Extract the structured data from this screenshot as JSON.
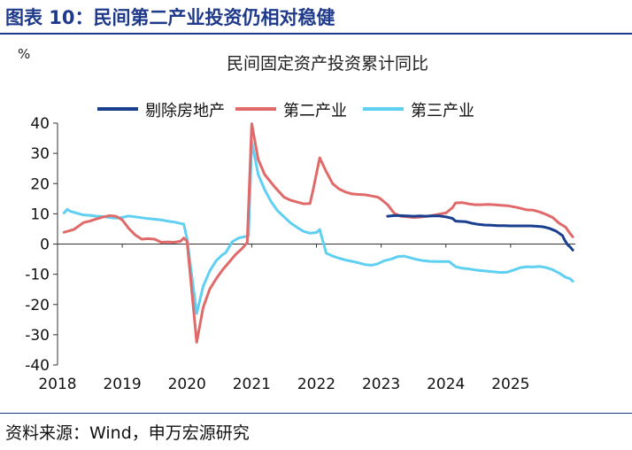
{
  "figure": {
    "title": "图表 10：民间第二产业投资仍相对稳健",
    "source": "资料来源：Wind，申万宏源研究"
  },
  "chart_data": {
    "type": "line",
    "title": "民间固定资产投资累计同比",
    "unit_label": "%",
    "ylim": [
      -40,
      40
    ],
    "y_ticks": [
      -40,
      -30,
      -20,
      -10,
      0,
      10,
      20,
      30,
      40
    ],
    "xlim": [
      2018.0,
      2026.0
    ],
    "x_ticks": [
      2018,
      2019,
      2020,
      2021,
      2022,
      2023,
      2024,
      2025
    ],
    "x_tick_labels": [
      "2018",
      "2019",
      "2020",
      "2021",
      "2022",
      "2023",
      "2024",
      "2025"
    ],
    "grid": false,
    "legend_position": "top",
    "series": [
      {
        "name": "剔除房地产",
        "color": "#1a3f8f",
        "points": [
          [
            2023.1,
            9.2
          ],
          [
            2023.2,
            9.4
          ],
          [
            2023.3,
            9.4
          ],
          [
            2023.4,
            9.3
          ],
          [
            2023.5,
            9.2
          ],
          [
            2023.6,
            9.3
          ],
          [
            2023.7,
            9.2
          ],
          [
            2023.8,
            9.3
          ],
          [
            2023.9,
            9.3
          ],
          [
            2024.0,
            9.0
          ],
          [
            2024.1,
            8.5
          ],
          [
            2024.15,
            7.6
          ],
          [
            2024.3,
            7.4
          ],
          [
            2024.4,
            6.9
          ],
          [
            2024.5,
            6.5
          ],
          [
            2024.6,
            6.3
          ],
          [
            2024.7,
            6.2
          ],
          [
            2024.8,
            6.1
          ],
          [
            2024.9,
            6.1
          ],
          [
            2025.0,
            6.0
          ],
          [
            2025.1,
            6.0
          ],
          [
            2025.2,
            6.0
          ],
          [
            2025.3,
            6.0
          ],
          [
            2025.4,
            5.9
          ],
          [
            2025.5,
            5.7
          ],
          [
            2025.6,
            5.2
          ],
          [
            2025.7,
            4.3
          ],
          [
            2025.8,
            2.8
          ],
          [
            2025.83,
            1.5
          ],
          [
            2025.88,
            -0.2
          ],
          [
            2025.92,
            -1.0
          ],
          [
            2025.96,
            -2.0
          ]
        ]
      },
      {
        "name": "第二产业",
        "color": "#e06a6a",
        "points": [
          [
            2018.1,
            3.9
          ],
          [
            2018.15,
            4.2
          ],
          [
            2018.25,
            4.8
          ],
          [
            2018.4,
            7.1
          ],
          [
            2018.5,
            7.6
          ],
          [
            2018.6,
            8.3
          ],
          [
            2018.7,
            8.9
          ],
          [
            2018.8,
            9.4
          ],
          [
            2018.9,
            9.2
          ],
          [
            2019.0,
            8.0
          ],
          [
            2019.1,
            5.2
          ],
          [
            2019.2,
            3.0
          ],
          [
            2019.3,
            1.6
          ],
          [
            2019.4,
            1.8
          ],
          [
            2019.5,
            1.6
          ],
          [
            2019.6,
            0.6
          ],
          [
            2019.7,
            0.7
          ],
          [
            2019.8,
            0.6
          ],
          [
            2019.9,
            0.9
          ],
          [
            2019.95,
            2.0
          ],
          [
            2020.0,
            1.0
          ],
          [
            2020.15,
            -32.5
          ],
          [
            2020.25,
            -21.0
          ],
          [
            2020.35,
            -15.0
          ],
          [
            2020.45,
            -11.5
          ],
          [
            2020.55,
            -8.5
          ],
          [
            2020.65,
            -6.0
          ],
          [
            2020.75,
            -3.5
          ],
          [
            2020.85,
            -1.5
          ],
          [
            2020.93,
            0.5
          ],
          [
            2021.0,
            39.8
          ],
          [
            2021.1,
            28.0
          ],
          [
            2021.2,
            23.0
          ],
          [
            2021.35,
            19.0
          ],
          [
            2021.5,
            15.5
          ],
          [
            2021.6,
            14.5
          ],
          [
            2021.7,
            13.9
          ],
          [
            2021.8,
            13.3
          ],
          [
            2021.9,
            13.4
          ],
          [
            2021.95,
            18.0
          ],
          [
            2022.05,
            28.5
          ],
          [
            2022.15,
            24.0
          ],
          [
            2022.25,
            20.0
          ],
          [
            2022.35,
            18.2
          ],
          [
            2022.45,
            17.2
          ],
          [
            2022.55,
            16.6
          ],
          [
            2022.65,
            16.4
          ],
          [
            2022.75,
            16.3
          ],
          [
            2022.85,
            15.9
          ],
          [
            2022.95,
            15.5
          ],
          [
            2023.0,
            14.8
          ],
          [
            2023.1,
            13.0
          ],
          [
            2023.2,
            10.2
          ],
          [
            2023.3,
            9.2
          ],
          [
            2023.4,
            9.0
          ],
          [
            2023.5,
            8.8
          ],
          [
            2023.6,
            8.9
          ],
          [
            2023.7,
            9.2
          ],
          [
            2023.8,
            9.5
          ],
          [
            2023.9,
            9.9
          ],
          [
            2024.0,
            10.3
          ],
          [
            2024.1,
            12.0
          ],
          [
            2024.15,
            13.6
          ],
          [
            2024.25,
            13.7
          ],
          [
            2024.35,
            13.3
          ],
          [
            2024.45,
            13.0
          ],
          [
            2024.55,
            13.0
          ],
          [
            2024.65,
            13.1
          ],
          [
            2024.75,
            13.0
          ],
          [
            2024.85,
            12.8
          ],
          [
            2024.95,
            12.7
          ],
          [
            2025.1,
            12.1
          ],
          [
            2025.25,
            11.3
          ],
          [
            2025.35,
            11.2
          ],
          [
            2025.45,
            10.6
          ],
          [
            2025.55,
            9.8
          ],
          [
            2025.65,
            8.8
          ],
          [
            2025.75,
            6.9
          ],
          [
            2025.85,
            5.6
          ],
          [
            2025.92,
            3.4
          ],
          [
            2025.96,
            2.4
          ]
        ]
      },
      {
        "name": "第三产业",
        "color": "#5fd0f2",
        "points": [
          [
            2018.1,
            10.3
          ],
          [
            2018.15,
            11.5
          ],
          [
            2018.2,
            10.8
          ],
          [
            2018.3,
            10.2
          ],
          [
            2018.4,
            9.6
          ],
          [
            2018.5,
            9.5
          ],
          [
            2018.6,
            9.2
          ],
          [
            2018.7,
            9.1
          ],
          [
            2018.8,
            8.8
          ],
          [
            2018.9,
            8.6
          ],
          [
            2019.0,
            8.8
          ],
          [
            2019.1,
            9.3
          ],
          [
            2019.2,
            9.0
          ],
          [
            2019.3,
            8.7
          ],
          [
            2019.4,
            8.4
          ],
          [
            2019.5,
            8.2
          ],
          [
            2019.6,
            8.0
          ],
          [
            2019.7,
            7.6
          ],
          [
            2019.8,
            7.3
          ],
          [
            2019.9,
            6.8
          ],
          [
            2019.95,
            6.6
          ],
          [
            2020.0,
            1.8
          ],
          [
            2020.15,
            -23.0
          ],
          [
            2020.25,
            -14.0
          ],
          [
            2020.35,
            -9.0
          ],
          [
            2020.45,
            -5.5
          ],
          [
            2020.55,
            -3.5
          ],
          [
            2020.6,
            -2.8
          ],
          [
            2020.7,
            0.8
          ],
          [
            2020.8,
            2.0
          ],
          [
            2020.9,
            2.5
          ],
          [
            2020.95,
            2.7
          ],
          [
            2021.0,
            34.0
          ],
          [
            2021.1,
            23.0
          ],
          [
            2021.2,
            18.0
          ],
          [
            2021.3,
            14.0
          ],
          [
            2021.4,
            11.0
          ],
          [
            2021.5,
            9.0
          ],
          [
            2021.6,
            7.0
          ],
          [
            2021.7,
            5.5
          ],
          [
            2021.8,
            4.2
          ],
          [
            2021.9,
            3.6
          ],
          [
            2022.0,
            3.8
          ],
          [
            2022.05,
            4.8
          ],
          [
            2022.15,
            -3.0
          ],
          [
            2022.25,
            -4.0
          ],
          [
            2022.35,
            -4.7
          ],
          [
            2022.45,
            -5.3
          ],
          [
            2022.55,
            -5.7
          ],
          [
            2022.65,
            -6.2
          ],
          [
            2022.75,
            -6.8
          ],
          [
            2022.85,
            -7.0
          ],
          [
            2022.95,
            -6.5
          ],
          [
            2023.05,
            -5.5
          ],
          [
            2023.15,
            -5.0
          ],
          [
            2023.25,
            -4.2
          ],
          [
            2023.35,
            -4.0
          ],
          [
            2023.45,
            -4.5
          ],
          [
            2023.55,
            -5.1
          ],
          [
            2023.65,
            -5.5
          ],
          [
            2023.75,
            -5.7
          ],
          [
            2023.85,
            -5.8
          ],
          [
            2023.95,
            -5.8
          ],
          [
            2024.05,
            -5.8
          ],
          [
            2024.15,
            -7.5
          ],
          [
            2024.25,
            -8.0
          ],
          [
            2024.35,
            -8.2
          ],
          [
            2024.45,
            -8.6
          ],
          [
            2024.55,
            -8.8
          ],
          [
            2024.65,
            -9.0
          ],
          [
            2024.75,
            -9.2
          ],
          [
            2024.85,
            -9.4
          ],
          [
            2024.95,
            -9.3
          ],
          [
            2025.05,
            -8.6
          ],
          [
            2025.15,
            -7.8
          ],
          [
            2025.25,
            -7.5
          ],
          [
            2025.35,
            -7.6
          ],
          [
            2025.45,
            -7.4
          ],
          [
            2025.55,
            -7.8
          ],
          [
            2025.65,
            -8.5
          ],
          [
            2025.75,
            -9.6
          ],
          [
            2025.85,
            -11.0
          ],
          [
            2025.92,
            -11.5
          ],
          [
            2025.96,
            -12.3
          ]
        ]
      }
    ]
  }
}
